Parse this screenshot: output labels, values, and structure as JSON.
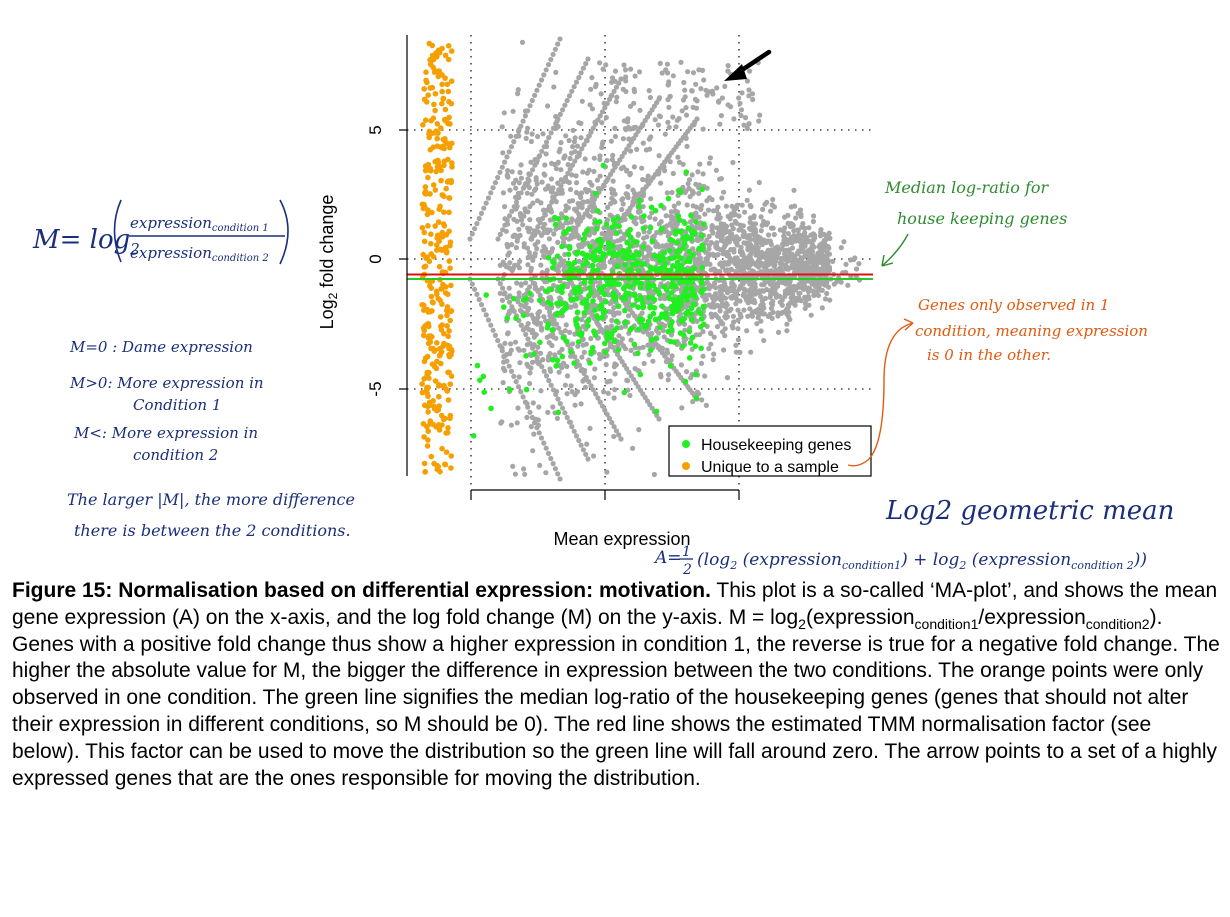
{
  "colors": {
    "grey_points": "#a6a6a6",
    "orange_points": "#f5a000",
    "green_points": "#22ee22",
    "red_line": "#dd1111",
    "green_line": "#22cc22",
    "annotation_blue": "#1a2f7a",
    "annotation_green": "#2e8b2e",
    "annotation_orange": "#e05a10"
  },
  "chart_data": {
    "type": "scatter",
    "title": "",
    "xlabel": "Mean expression",
    "ylabel": "Log2 fold change",
    "ylabel_parts": {
      "main": "Log",
      "sub": "2",
      "rest": " fold change"
    },
    "ylim": [
      -8.3,
      8.8
    ],
    "y_ticks": [
      5,
      0,
      -5
    ],
    "y_tick_labels": [
      "5",
      "0",
      "-5"
    ],
    "x_ticks_count": 3,
    "grid": "dotted at tick positions",
    "legend_position": "bottom-right",
    "series": [
      {
        "name": "Housekeeping genes",
        "color": "#22ee22"
      },
      {
        "name": "Unique to a sample",
        "color": "#f5a000"
      }
    ],
    "lines": [
      {
        "color": "red",
        "y": -0.6
      },
      {
        "color": "green",
        "y": -0.8
      }
    ]
  },
  "annotations": {
    "m_formula": {
      "lhs": "M= log",
      "base": "2",
      "numerator": "expression",
      "numerator_sub": "condition 1",
      "denominator": "expression",
      "denominator_sub": "condition 2"
    },
    "m_rules": [
      "M=0 : Dame expression",
      "M>0: More expression in",
      "Condition 1",
      "M<: More expression in",
      "condition 2"
    ],
    "larger_m": [
      "The larger |M|, the more difference",
      "there is between the 2 conditions."
    ],
    "median_note": [
      "Median log-ratio for",
      "house keeping genes"
    ],
    "unique_note": [
      "Genes only observed in 1",
      "condition, meaning expression",
      "is 0 in the other."
    ],
    "log_geo_mean": "Log2 geometric mean",
    "a_formula": {
      "lhs": "A=",
      "frac_num": "1",
      "frac_den": "2",
      "t1": "(log",
      "t1_base": "2",
      "t1_arg": " (expression",
      "t1_sub": "condition1",
      "t2": ") + log",
      "t2_base": "2",
      "t2_arg": " (expression",
      "t2_sub": "condition 2",
      "close": "))"
    }
  },
  "caption": {
    "bold": "Figure 15: Normalisation based on differential expression: motivation.",
    "t1": " This plot is a so-called ‘MA-plot’, and shows the mean gene expression (A) on the x-axis, and the log fold change (M) on the y-axis. M = log",
    "sub_2": "2",
    "t2": "(expression",
    "sub_c1": "condition1",
    "t3": "/expression",
    "sub_c2": "condition2",
    "t4": "). Genes with a positive fold change thus show a higher expression in condition 1, the reverse is true for a negative fold change. The higher the absolute value for M, the bigger the difference in expression between the two conditions. The orange points were only observed in one condition. The green line signifies the median log-ratio of the housekeeping genes (genes that should not alter their expression in different conditions, so M should be 0). The red line shows the estimated TMM normalisation factor (see below). This factor can be used to move the distribution so the green line will fall around zero. The arrow points to a set of a highly expressed genes that are the ones responsible for moving the distribution."
  }
}
